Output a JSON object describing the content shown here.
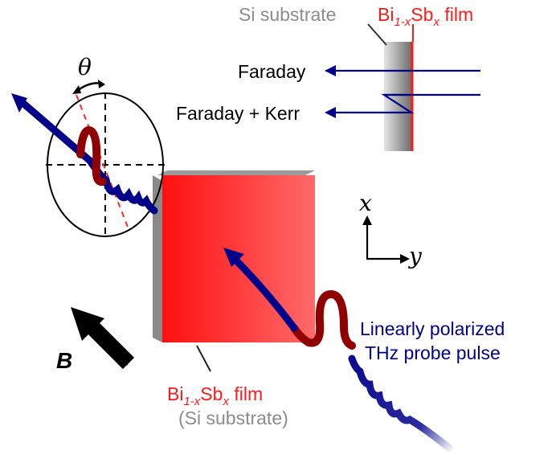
{
  "labels": {
    "si_substrate": "Si substrate",
    "film_top": {
      "main": "Bi",
      "sub1": "1-x",
      "mid": "Sb",
      "sub2": "x",
      "tail": " film"
    },
    "faraday": "Faraday",
    "faraday_kerr": "Faraday + Kerr",
    "theta": "θ",
    "axis_x": "x",
    "axis_y": "y",
    "field": "B",
    "film_bottom": {
      "main": "Bi",
      "sub1": "1-x",
      "mid": "Sb",
      "sub2": "x",
      "tail": " film"
    },
    "substrate_bottom": "(Si substrate)",
    "probe_line1": "Linearly polarized",
    "probe_line2": "THz probe pulse"
  },
  "colors": {
    "film_red": "#ff1a1a",
    "substrate_gray": "#8c8c8c",
    "beam_navy": "#00008b",
    "probe_text": "#00008b",
    "substrate_text": "#8c8c8c"
  },
  "icons": [
    "rotation-double-arrow-icon",
    "field-arrow-icon",
    "axis-arrow-icon"
  ]
}
